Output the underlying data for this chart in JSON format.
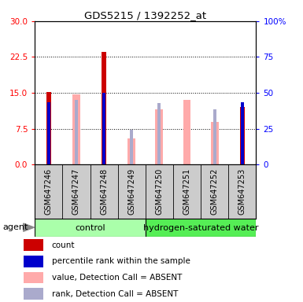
{
  "title": "GDS5215 / 1392252_at",
  "samples": [
    "GSM647246",
    "GSM647247",
    "GSM647248",
    "GSM647249",
    "GSM647250",
    "GSM647251",
    "GSM647252",
    "GSM647253"
  ],
  "count_values": [
    15.2,
    0,
    23.5,
    0,
    0,
    0,
    0,
    12.0
  ],
  "percentile_rank_values": [
    13.0,
    0,
    15.0,
    0,
    0,
    0,
    0,
    13.0
  ],
  "absent_value_values": [
    0,
    14.7,
    0,
    5.5,
    11.5,
    13.5,
    9.0,
    0
  ],
  "absent_rank_values": [
    0,
    13.5,
    0,
    7.3,
    12.8,
    0,
    11.5,
    0
  ],
  "left_ylim": [
    0,
    30
  ],
  "right_ylim": [
    0,
    100
  ],
  "left_yticks": [
    0,
    7.5,
    15,
    22.5,
    30
  ],
  "right_yticks": [
    0,
    25,
    50,
    75,
    100
  ],
  "right_yticklabels": [
    "0",
    "25",
    "50",
    "75",
    "100%"
  ],
  "color_count": "#cc0000",
  "color_percentile": "#0000cc",
  "color_absent_value": "#ffaaaa",
  "color_absent_rank": "#aaaacc",
  "agent_label": "agent",
  "group_label_control": "control",
  "group_label_hw": "hydrogen-saturated water",
  "color_control": "#aaffaa",
  "color_hw": "#55ee55",
  "legend_items": [
    {
      "label": "count",
      "color": "#cc0000"
    },
    {
      "label": "percentile rank within the sample",
      "color": "#0000cc"
    },
    {
      "label": "value, Detection Call = ABSENT",
      "color": "#ffaaaa"
    },
    {
      "label": "rank, Detection Call = ABSENT",
      "color": "#aaaacc"
    }
  ]
}
